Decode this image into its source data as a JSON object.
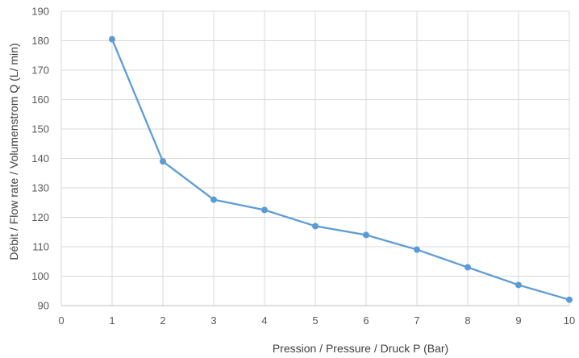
{
  "chart_data": {
    "type": "line",
    "title": "",
    "xlabel": "Pression / Pressure /  Druck P (Bar)",
    "ylabel": "Débit / Flow rate / Volumenstrom Q (L/ min)",
    "xlim": [
      0,
      10
    ],
    "ylim": [
      90,
      190
    ],
    "x_ticks": [
      0,
      1,
      2,
      3,
      4,
      5,
      6,
      7,
      8,
      9,
      10
    ],
    "y_ticks": [
      90,
      100,
      110,
      120,
      130,
      140,
      150,
      160,
      170,
      180,
      190
    ],
    "grid": true,
    "legend": "none",
    "series": [
      {
        "color": "#5B9BD5",
        "x": [
          1,
          2,
          3,
          4,
          5,
          6,
          7,
          8,
          9,
          10
        ],
        "y": [
          180.5,
          139,
          126,
          122.5,
          117,
          114,
          109,
          103,
          97,
          92
        ]
      }
    ]
  }
}
